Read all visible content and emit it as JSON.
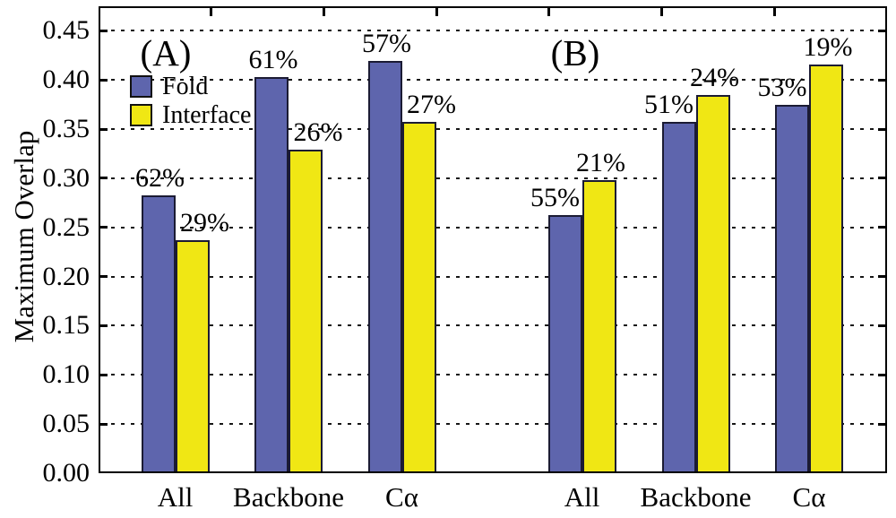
{
  "chart_data": {
    "type": "bar",
    "title": "",
    "ylabel": "Maximum Overlap",
    "xlabel": "",
    "ylim": [
      0,
      0.475
    ],
    "ytick_step": 0.05,
    "ytick_labels": [
      "0.00",
      "0.05",
      "0.10",
      "0.15",
      "0.20",
      "0.25",
      "0.30",
      "0.35",
      "0.40",
      "0.45"
    ],
    "grid": "horizontal-dashed",
    "legend": {
      "position": "upper-left",
      "entries": [
        {
          "label": "Fold",
          "color": "#5e65ad"
        },
        {
          "label": "Interface",
          "color": "#f0e714"
        }
      ]
    },
    "panels": [
      {
        "label": "(A)",
        "categories": [
          "All",
          "Backbone",
          "Cα"
        ],
        "series": [
          {
            "name": "Fold",
            "color": "#5e65ad",
            "values": [
              0.283,
              0.403,
              0.419
            ],
            "value_labels": [
              "62%",
              "61%",
              "57%"
            ]
          },
          {
            "name": "Interface",
            "color": "#f0e714",
            "values": [
              0.237,
              0.329,
              0.357
            ],
            "value_labels": [
              "29%",
              "26%",
              "27%"
            ]
          }
        ]
      },
      {
        "label": "(B)",
        "categories": [
          "All",
          "Backbone",
          "Cα"
        ],
        "series": [
          {
            "name": "Fold",
            "color": "#5e65ad",
            "values": [
              0.263,
              0.357,
              0.375
            ],
            "value_labels": [
              "55%",
              "51%",
              "53%"
            ]
          },
          {
            "name": "Interface",
            "color": "#f0e714",
            "values": [
              0.298,
              0.385,
              0.416
            ],
            "value_labels": [
              "21%",
              "24%",
              "19%"
            ]
          }
        ]
      }
    ]
  }
}
